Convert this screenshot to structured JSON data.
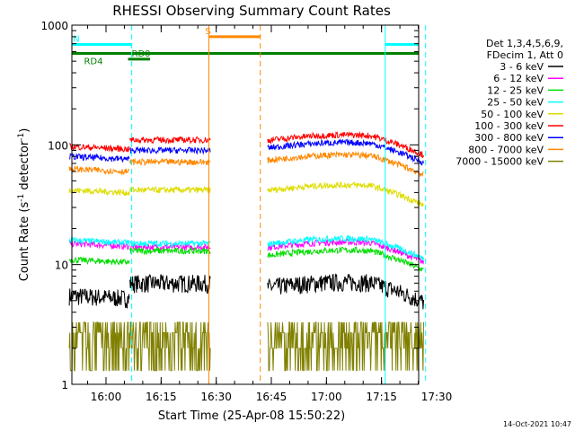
{
  "chart_data": {
    "type": "line",
    "title": "RHESSI Observing Summary Count Rates",
    "xlabel": "Start Time (25-Apr-08 15:50:22)",
    "ylabel_main": "Count Rate (s",
    "ylabel_exp1": "-1",
    "ylabel_mid": " detector",
    "ylabel_exp2": "-1",
    "ylabel_end": ")",
    "yscale": "log",
    "ylim": [
      1,
      1000
    ],
    "xlim_minutes": [
      0,
      98
    ],
    "x_ticks": [
      {
        "label": "16:00",
        "t": 10
      },
      {
        "label": "16:15",
        "t": 25
      },
      {
        "label": "16:30",
        "t": 40
      },
      {
        "label": "16:45",
        "t": 55
      },
      {
        "label": "17:00",
        "t": 70
      },
      {
        "label": "17:15",
        "t": 85
      },
      {
        "label": "17:30",
        "t": 100
      }
    ],
    "y_ticks": [
      {
        "label": "1",
        "v": 1
      },
      {
        "label": "10",
        "v": 10
      },
      {
        "label": "100",
        "v": 100
      },
      {
        "label": "1000",
        "v": 1000
      }
    ],
    "legend": {
      "header": [
        "Det 1,3,4,5,6,9,",
        "FDecim 1, Att 0"
      ],
      "placement": "right"
    },
    "series": [
      {
        "name": "3 - 6 keV",
        "color": "#000000",
        "pre": 5.5,
        "mid": 7.0,
        "post": 6.5
      },
      {
        "name": "6 - 12 keV",
        "color": "#ff00ff",
        "pre": 15,
        "mid": 14,
        "post": 14
      },
      {
        "name": "12 - 25 keV",
        "color": "#00dd00",
        "pre": 11,
        "mid": 13,
        "post": 12
      },
      {
        "name": "25 - 50 keV",
        "color": "#00ffff",
        "pre": 16,
        "mid": 15,
        "post": 15
      },
      {
        "name": "50 - 100 keV",
        "color": "#dddd00",
        "pre": 42,
        "mid": 42,
        "post": 42
      },
      {
        "name": "100 - 300 keV",
        "color": "#ff0000",
        "pre": 97,
        "mid": 110,
        "post": 110
      },
      {
        "name": "300 - 800 keV",
        "color": "#0000ff",
        "pre": 80,
        "mid": 90,
        "post": 95
      },
      {
        "name": "800 - 7000 keV",
        "color": "#ff8800",
        "pre": 63,
        "mid": 72,
        "post": 75
      },
      {
        "name": "7000 - 15000 keV",
        "color": "#808000",
        "pre": 2.0,
        "mid": 2.5,
        "post": 2.5
      }
    ],
    "data_gaps": [
      [
        41,
        54
      ]
    ],
    "flags": [
      {
        "label": "N",
        "color": "#00ffff",
        "t_start": 0,
        "t_end": 17,
        "value": 690
      },
      {
        "label": "",
        "color": "#00ffff",
        "t_start": 86,
        "t_end": 98,
        "value": 690
      },
      {
        "label": "S",
        "color": "#ff8800",
        "t_start": 38,
        "t_end": 52,
        "value": 800
      },
      {
        "label": "RD0",
        "color": "#008000",
        "t_start": 16,
        "t_end": 22,
        "value": 520
      },
      {
        "label": "RD4",
        "color": "#008000",
        "t_start": 0,
        "t_end": 98,
        "value": 580
      }
    ],
    "markers": [
      {
        "t": 17,
        "color": "#00ffff",
        "style": "dashed"
      },
      {
        "t": 38,
        "color": "#ff8800",
        "style": "solid"
      },
      {
        "t": 52,
        "color": "#ff8800",
        "style": "dashed"
      },
      {
        "t": 86,
        "color": "#00ffff",
        "style": "solid"
      },
      {
        "t": 97,
        "color": "#00ffff",
        "style": "dashed"
      }
    ]
  },
  "footer": {
    "timestamp": "14-Oct-2021 10:47"
  }
}
